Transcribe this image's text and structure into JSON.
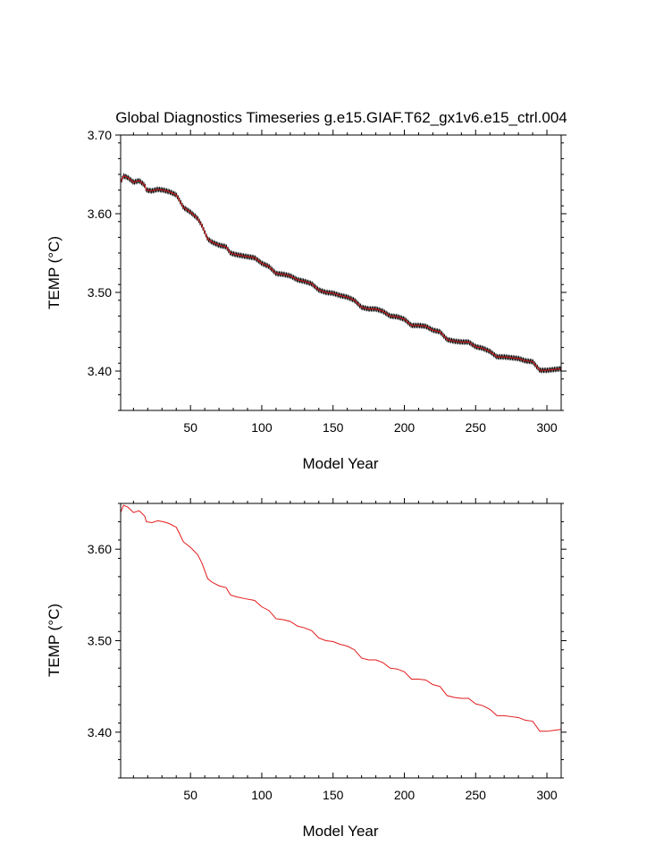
{
  "chart_data": [
    {
      "type": "line",
      "title": "Global Diagnostics Timeseries g.e15.GIAF.T62_gx1v6.e15_ctrl.004",
      "xlabel": "Model Year",
      "ylabel": "TEMP (°C)",
      "xlim": [
        1,
        310
      ],
      "ylim": [
        3.35,
        3.7
      ],
      "xticks": [
        50,
        100,
        150,
        200,
        250,
        300
      ],
      "yticks": [
        3.4,
        3.5,
        3.6,
        3.7
      ],
      "ytick_labels": [
        "3.40",
        "3.50",
        "3.60",
        "3.70"
      ],
      "grid": false,
      "series": [
        {
          "role": "monthly",
          "color": "#000000",
          "seasonal_amplitude": 0.003,
          "x": [
            1,
            3,
            6,
            10,
            14,
            18,
            19,
            23,
            27,
            31,
            35,
            40,
            42,
            45,
            50,
            55,
            58,
            62,
            65,
            70,
            75,
            78,
            82,
            88,
            95,
            100,
            105,
            110,
            115,
            120,
            125,
            130,
            135,
            140,
            145,
            150,
            155,
            160,
            165,
            170,
            175,
            180,
            185,
            190,
            195,
            200,
            205,
            210,
            215,
            220,
            225,
            230,
            235,
            240,
            245,
            250,
            255,
            260,
            265,
            270,
            275,
            280,
            285,
            290,
            295,
            300,
            305,
            310
          ],
          "y": [
            3.64,
            3.648,
            3.646,
            3.64,
            3.642,
            3.636,
            3.63,
            3.629,
            3.631,
            3.63,
            3.628,
            3.624,
            3.618,
            3.608,
            3.602,
            3.594,
            3.585,
            3.568,
            3.564,
            3.56,
            3.558,
            3.55,
            3.548,
            3.546,
            3.544,
            3.537,
            3.533,
            3.524,
            3.523,
            3.521,
            3.516,
            3.514,
            3.511,
            3.503,
            3.5,
            3.499,
            3.496,
            3.494,
            3.49,
            3.481,
            3.479,
            3.479,
            3.476,
            3.47,
            3.469,
            3.466,
            3.458,
            3.458,
            3.457,
            3.452,
            3.45,
            3.44,
            3.438,
            3.437,
            3.437,
            3.431,
            3.429,
            3.425,
            3.418,
            3.418,
            3.417,
            3.416,
            3.413,
            3.412,
            3.401,
            3.401,
            3.402,
            3.403
          ]
        },
        {
          "role": "annual-mean",
          "color": "#e4191c",
          "x": [
            1,
            3,
            6,
            10,
            14,
            18,
            19,
            23,
            27,
            31,
            35,
            40,
            42,
            45,
            50,
            55,
            58,
            62,
            65,
            70,
            75,
            78,
            82,
            88,
            95,
            100,
            105,
            110,
            115,
            120,
            125,
            130,
            135,
            140,
            145,
            150,
            155,
            160,
            165,
            170,
            175,
            180,
            185,
            190,
            195,
            200,
            205,
            210,
            215,
            220,
            225,
            230,
            235,
            240,
            245,
            250,
            255,
            260,
            265,
            270,
            275,
            280,
            285,
            290,
            295,
            300,
            305,
            310
          ],
          "y": [
            3.64,
            3.648,
            3.646,
            3.64,
            3.642,
            3.636,
            3.63,
            3.629,
            3.631,
            3.63,
            3.628,
            3.624,
            3.618,
            3.608,
            3.602,
            3.594,
            3.585,
            3.568,
            3.564,
            3.56,
            3.558,
            3.55,
            3.548,
            3.546,
            3.544,
            3.537,
            3.533,
            3.524,
            3.523,
            3.521,
            3.516,
            3.514,
            3.511,
            3.503,
            3.5,
            3.499,
            3.496,
            3.494,
            3.49,
            3.481,
            3.479,
            3.479,
            3.476,
            3.47,
            3.469,
            3.466,
            3.458,
            3.458,
            3.457,
            3.452,
            3.45,
            3.44,
            3.438,
            3.437,
            3.437,
            3.431,
            3.429,
            3.425,
            3.418,
            3.418,
            3.417,
            3.416,
            3.413,
            3.412,
            3.401,
            3.401,
            3.402,
            3.403
          ]
        }
      ]
    },
    {
      "type": "line",
      "title": "",
      "xlabel": "Model Year",
      "ylabel": "TEMP (°C)",
      "xlim": [
        1,
        310
      ],
      "ylim": [
        3.35,
        3.65
      ],
      "xticks": [
        50,
        100,
        150,
        200,
        250,
        300
      ],
      "yticks": [
        3.4,
        3.5,
        3.6
      ],
      "ytick_labels": [
        "3.40",
        "3.50",
        "3.60"
      ],
      "grid": false,
      "series": [
        {
          "role": "annual-mean",
          "color": "#e4191c",
          "x": [
            1,
            3,
            6,
            10,
            14,
            18,
            19,
            23,
            27,
            31,
            35,
            40,
            42,
            45,
            50,
            55,
            58,
            62,
            65,
            70,
            75,
            78,
            82,
            88,
            95,
            100,
            105,
            110,
            115,
            120,
            125,
            130,
            135,
            140,
            145,
            150,
            155,
            160,
            165,
            170,
            175,
            180,
            185,
            190,
            195,
            200,
            205,
            210,
            215,
            220,
            225,
            230,
            235,
            240,
            245,
            250,
            255,
            260,
            265,
            270,
            275,
            280,
            285,
            290,
            295,
            300,
            305,
            310
          ],
          "y": [
            3.64,
            3.648,
            3.646,
            3.64,
            3.642,
            3.636,
            3.63,
            3.629,
            3.631,
            3.63,
            3.628,
            3.624,
            3.618,
            3.608,
            3.602,
            3.594,
            3.585,
            3.568,
            3.564,
            3.56,
            3.558,
            3.55,
            3.548,
            3.546,
            3.544,
            3.537,
            3.533,
            3.524,
            3.523,
            3.521,
            3.516,
            3.514,
            3.511,
            3.503,
            3.5,
            3.499,
            3.496,
            3.494,
            3.49,
            3.481,
            3.479,
            3.479,
            3.476,
            3.47,
            3.469,
            3.466,
            3.458,
            3.458,
            3.457,
            3.452,
            3.45,
            3.44,
            3.438,
            3.437,
            3.437,
            3.431,
            3.429,
            3.425,
            3.418,
            3.418,
            3.417,
            3.416,
            3.413,
            3.412,
            3.401,
            3.401,
            3.402,
            3.403
          ]
        }
      ]
    }
  ]
}
